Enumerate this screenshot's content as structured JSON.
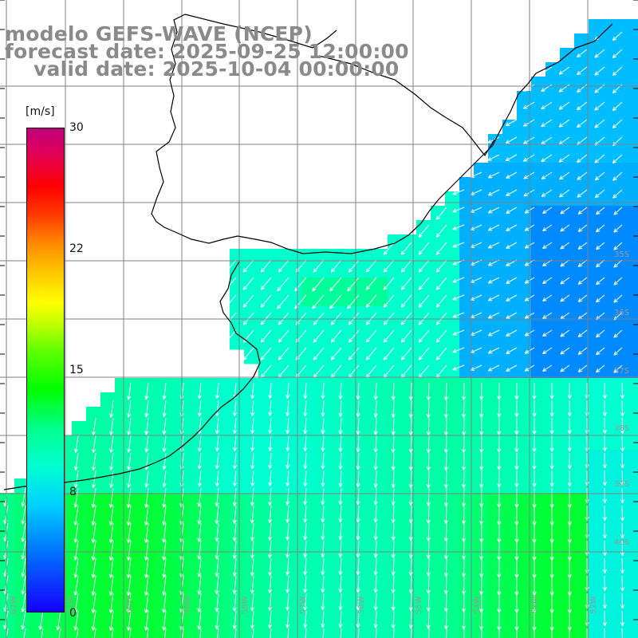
{
  "title": {
    "line1": "modelo GEFS-WAVE (NCEP)",
    "line2": "forecast date: 2025-09-25 12:00:00",
    "line3": "valid date: 2025-10-04 00:00:00"
  },
  "colorbar": {
    "unit": "[m/s]",
    "tick_labels": [
      "30",
      "22",
      "15",
      "8",
      "0"
    ],
    "tick_values": [
      30,
      22,
      15,
      8,
      0
    ],
    "min": 0,
    "max": 30
  },
  "map": {
    "latitude_labels": [
      "35S",
      "36S",
      "37S",
      "38S",
      "39S",
      "40S"
    ],
    "longitude_labels": [
      "62W",
      "61W",
      "60W",
      "59W",
      "58W",
      "57W",
      "56W",
      "55W",
      "54W",
      "53W",
      "52W",
      "51W"
    ],
    "colors": {
      "land": "#ffffff",
      "coastline": "#000000",
      "grid": "#808080",
      "vector": "#ffffff"
    },
    "field": "wind speed at 10 m with direction arrows",
    "dominant_direction": "northerly (arrows pointing south / southwest)"
  }
}
